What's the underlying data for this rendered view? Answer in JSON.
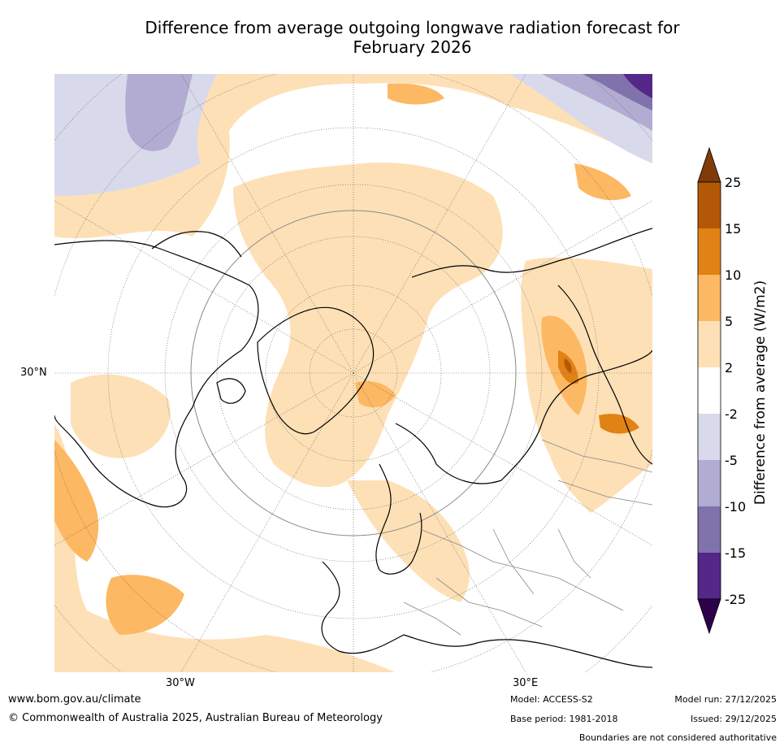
{
  "title": {
    "line1": "Difference from average outgoing longwave radiation forecast for",
    "line2": "February 2026"
  },
  "map": {
    "lat_label": "30°N",
    "lon_label_west": "30°W",
    "lon_label_east": "30°E"
  },
  "colorbar": {
    "label": "Difference from average (W/m2)",
    "ticks": [
      "25",
      "15",
      "10",
      "5",
      "2",
      "-2",
      "-5",
      "-10",
      "-15",
      "-25"
    ],
    "colors": {
      "over": "#7f3b08",
      "b15_25": "#b35806",
      "b10_15": "#e08214",
      "b5_10": "#fdb863",
      "b2_5": "#fee0b6",
      "neutral": "#ffffff",
      "m5_m2": "#d8daeb",
      "m10_m5": "#b2abd2",
      "m15_m10": "#8073ac",
      "m25_m15": "#542788",
      "under": "#2d004b"
    }
  },
  "footer": {
    "website": "www.bom.gov.au/climate",
    "copyright": "© Commonwealth of Australia 2025, Australian Bureau of Meteorology",
    "model": "Model: ACCESS-S2",
    "base_period": "Base period: 1981-2018",
    "model_run": "Model run: 27/12/2025",
    "issued": "Issued: 29/12/2025",
    "disclaimer": "Boundaries are not considered authoritative"
  }
}
